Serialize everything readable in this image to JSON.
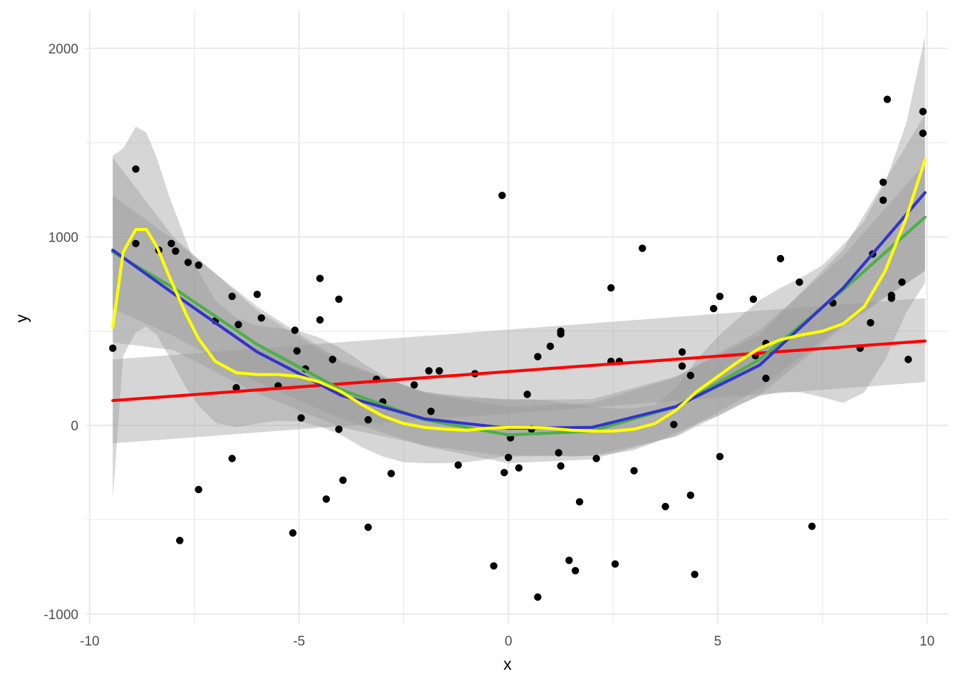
{
  "chart_data": {
    "type": "scatter",
    "title": "",
    "xlabel": "x",
    "ylabel": "y",
    "xlim": [
      -10.1,
      10.5
    ],
    "ylim": [
      -1050,
      2200
    ],
    "x_ticks": [
      -10,
      -5,
      0,
      5,
      10
    ],
    "x_tick_labels": [
      "-10",
      "-5",
      "0",
      "5",
      "10"
    ],
    "y_ticks": [
      -1000,
      0,
      1000,
      2000
    ],
    "y_tick_labels": [
      "-1000",
      "0",
      "1000",
      "2000"
    ],
    "x_minor_ticks": [
      -7.5,
      -2.5,
      2.5,
      7.5
    ],
    "y_minor_ticks": [
      -500,
      500,
      1500
    ],
    "grid": true,
    "legend": "none",
    "colors": {
      "points": "#000000",
      "grid": "#ebebeb",
      "ribbon": "#999999",
      "linear": "#ff0000",
      "quadratic": "#4daf4a",
      "cubic": "#3333cc",
      "loess": "#ffff00"
    },
    "points": [
      [
        -9.45,
        410
      ],
      [
        -8.9,
        1360
      ],
      [
        -8.9,
        965
      ],
      [
        -8.35,
        930
      ],
      [
        -8.05,
        965
      ],
      [
        -7.95,
        925
      ],
      [
        -7.65,
        865
      ],
      [
        -7.4,
        850
      ],
      [
        -7.85,
        -610
      ],
      [
        -7.4,
        -340
      ],
      [
        -7.0,
        555
      ],
      [
        -6.6,
        685
      ],
      [
        -6.45,
        535
      ],
      [
        -6.5,
        200
      ],
      [
        -6.6,
        -175
      ],
      [
        -6.0,
        695
      ],
      [
        -5.9,
        570
      ],
      [
        -5.5,
        210
      ],
      [
        -5.1,
        505
      ],
      [
        -5.05,
        395
      ],
      [
        -4.95,
        40
      ],
      [
        -5.15,
        -570
      ],
      [
        -4.85,
        300
      ],
      [
        -4.5,
        780
      ],
      [
        -4.5,
        560
      ],
      [
        -4.35,
        -390
      ],
      [
        -4.2,
        350
      ],
      [
        -4.05,
        670
      ],
      [
        -4.05,
        -20
      ],
      [
        -3.95,
        -290
      ],
      [
        -3.35,
        30
      ],
      [
        -3.15,
        245
      ],
      [
        -3.0,
        125
      ],
      [
        -3.35,
        -540
      ],
      [
        -2.8,
        -255
      ],
      [
        -2.25,
        215
      ],
      [
        -1.9,
        290
      ],
      [
        -1.85,
        75
      ],
      [
        -1.65,
        290
      ],
      [
        -1.2,
        -210
      ],
      [
        -0.8,
        275
      ],
      [
        -0.15,
        1220
      ],
      [
        -0.35,
        -745
      ],
      [
        -0.1,
        -250
      ],
      [
        0.0,
        -170
      ],
      [
        0.05,
        -65
      ],
      [
        0.25,
        -225
      ],
      [
        0.45,
        165
      ],
      [
        0.55,
        -20
      ],
      [
        0.7,
        365
      ],
      [
        0.7,
        -910
      ],
      [
        1.0,
        420
      ],
      [
        1.25,
        500
      ],
      [
        1.25,
        485
      ],
      [
        1.2,
        -145
      ],
      [
        1.25,
        -215
      ],
      [
        1.45,
        -715
      ],
      [
        1.6,
        -770
      ],
      [
        1.7,
        -405
      ],
      [
        2.1,
        -175
      ],
      [
        2.45,
        730
      ],
      [
        2.45,
        340
      ],
      [
        2.65,
        340
      ],
      [
        2.55,
        -735
      ],
      [
        3.2,
        940
      ],
      [
        3.0,
        -240
      ],
      [
        3.75,
        -430
      ],
      [
        3.95,
        5
      ],
      [
        4.15,
        390
      ],
      [
        4.15,
        315
      ],
      [
        4.35,
        265
      ],
      [
        4.35,
        -370
      ],
      [
        4.45,
        -790
      ],
      [
        4.9,
        620
      ],
      [
        5.05,
        685
      ],
      [
        5.05,
        -165
      ],
      [
        5.85,
        670
      ],
      [
        5.9,
        370
      ],
      [
        6.15,
        250
      ],
      [
        6.15,
        435
      ],
      [
        6.5,
        885
      ],
      [
        6.95,
        760
      ],
      [
        7.25,
        -535
      ],
      [
        7.75,
        650
      ],
      [
        8.4,
        410
      ],
      [
        8.65,
        545
      ],
      [
        8.7,
        910
      ],
      [
        8.95,
        1290
      ],
      [
        8.95,
        1195
      ],
      [
        9.05,
        1730
      ],
      [
        9.15,
        675
      ],
      [
        9.15,
        690
      ],
      [
        9.4,
        760
      ],
      [
        9.55,
        350
      ],
      [
        9.9,
        1665
      ],
      [
        9.9,
        1550
      ]
    ],
    "series": [
      {
        "type": "line",
        "x": [
          -9.45,
          9.95
        ],
        "y": [
          132,
          448
        ],
        "band_upper": [
          350,
          675
        ],
        "band_lower": [
          -95,
          230
        ]
      },
      {
        "type": "line",
        "x": [
          -9.45,
          -8,
          -6,
          -4,
          -2,
          0,
          2,
          4,
          6,
          8,
          9.95
        ],
        "y": [
          920,
          730,
          430,
          190,
          30,
          -50,
          -30,
          100,
          350,
          720,
          1105
        ],
        "band_upper": [
          1220,
          985,
          630,
          345,
          170,
          100,
          120,
          255,
          505,
          900,
          1390
        ],
        "band_lower": [
          620,
          475,
          230,
          35,
          -110,
          -200,
          -180,
          -55,
          195,
          540,
          820
        ]
      },
      {
        "type": "line",
        "x": [
          -9.45,
          -8,
          -6,
          -4,
          -2,
          0,
          2,
          4,
          6,
          8,
          9.95
        ],
        "y": [
          930,
          700,
          390,
          160,
          35,
          -15,
          -10,
          100,
          320,
          730,
          1235
        ],
        "band_upper": [
          1420,
          1000,
          610,
          330,
          175,
          135,
          140,
          260,
          480,
          935,
          1650
        ],
        "band_lower": [
          440,
          400,
          170,
          -10,
          -105,
          -165,
          -160,
          -60,
          160,
          525,
          820
        ]
      },
      {
        "type": "line",
        "x": [
          -9.45,
          -9.2,
          -8.9,
          -8.65,
          -8.4,
          -8.1,
          -7.7,
          -7.4,
          -7.0,
          -6.5,
          -6.0,
          -5.5,
          -5.0,
          -4.5,
          -4.0,
          -3.5,
          -3.0,
          -2.5,
          -2.0,
          -1.5,
          -1.0,
          -0.5,
          0.0,
          0.5,
          1.0,
          1.5,
          2.0,
          2.5,
          3.0,
          3.5,
          4.0,
          4.5,
          5.0,
          5.5,
          6.0,
          6.5,
          7.0,
          7.5,
          8.0,
          8.5,
          9.0,
          9.5,
          9.95
        ],
        "y": [
          520,
          920,
          1040,
          1040,
          950,
          790,
          590,
          460,
          340,
          280,
          270,
          270,
          260,
          230,
          180,
          110,
          50,
          10,
          -10,
          -20,
          -25,
          -15,
          -10,
          -10,
          -15,
          -25,
          -30,
          -30,
          -20,
          10,
          80,
          180,
          260,
          340,
          410,
          455,
          480,
          500,
          540,
          630,
          820,
          1100,
          1410
        ],
        "band_upper": [
          1430,
          1470,
          1585,
          1555,
          1420,
          1215,
          980,
          815,
          665,
          570,
          530,
          515,
          500,
          465,
          410,
          335,
          265,
          215,
          180,
          160,
          145,
          145,
          140,
          140,
          130,
          115,
          100,
          90,
          90,
          110,
          200,
          350,
          470,
          570,
          665,
          730,
          785,
          850,
          960,
          1085,
          1290,
          1600,
          2065
        ],
        "band_lower": [
          -390,
          370,
          495,
          525,
          480,
          365,
          200,
          105,
          15,
          -10,
          10,
          25,
          20,
          -5,
          -50,
          -115,
          -165,
          -195,
          -200,
          -200,
          -195,
          -180,
          -160,
          -160,
          -160,
          -165,
          -160,
          -150,
          -130,
          -90,
          -40,
          10,
          50,
          110,
          155,
          180,
          175,
          150,
          120,
          175,
          350,
          600,
          755
        ]
      }
    ]
  }
}
